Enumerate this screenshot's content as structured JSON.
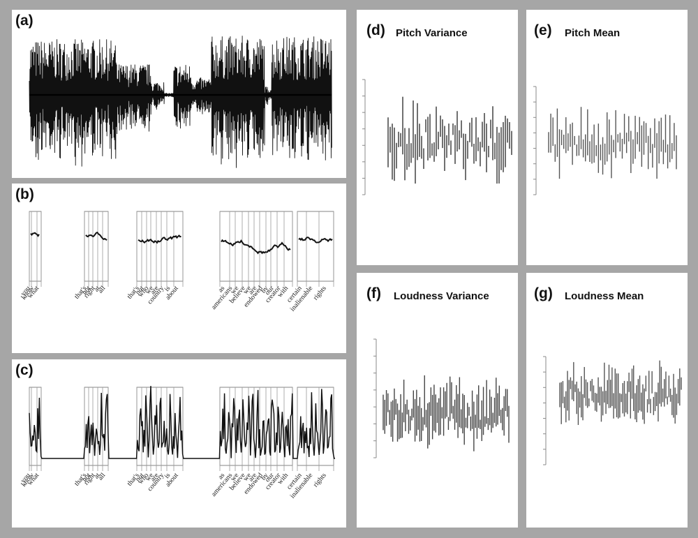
{
  "panels": {
    "a": {
      "tag": "(a)"
    },
    "b": {
      "tag": "(b)"
    },
    "c": {
      "tag": "(c)"
    },
    "d": {
      "tag": "(d)",
      "title": "Pitch Variance"
    },
    "e": {
      "tag": "(e)",
      "title": "Pitch Mean"
    },
    "f": {
      "tag": "(f)",
      "title": "Loudness Variance"
    },
    "g": {
      "tag": "(g)",
      "title": "Loudness Mean"
    }
  },
  "chart_data": [
    {
      "type": "line",
      "panel": "a",
      "title": "",
      "series": [
        {
          "values": []
        }
      ]
    },
    {
      "type": "line",
      "panel": "b",
      "words": [
        "you",
        "know",
        "what",
        "that's",
        "not",
        "right",
        "at",
        "all",
        "that's",
        "not",
        "who",
        "we",
        "are",
        "country",
        "is",
        "about",
        "as",
        "americans",
        "we",
        "believe",
        "we",
        "are",
        "endowed",
        "by",
        "our",
        "creator",
        "with",
        "certain",
        "inalienable",
        "rights"
      ]
    },
    {
      "type": "line",
      "panel": "c",
      "words": [
        "you",
        "know",
        "what",
        "that's",
        "not",
        "right",
        "at",
        "all",
        "that's",
        "not",
        "who",
        "we",
        "are",
        "country",
        "is",
        "about",
        "as",
        "americans",
        "we",
        "believe",
        "we",
        "are",
        "endowed",
        "by",
        "our",
        "creator",
        "with",
        "certain",
        "inalienable",
        "rights"
      ]
    },
    {
      "type": "bar",
      "panel": "d",
      "title": "Pitch Variance",
      "series": [
        {
          "values": []
        }
      ]
    },
    {
      "type": "bar",
      "panel": "e",
      "title": "Pitch Mean",
      "series": [
        {
          "values": []
        }
      ]
    },
    {
      "type": "line",
      "panel": "f",
      "title": "Loudness Variance",
      "series": [
        {
          "values": []
        }
      ]
    },
    {
      "type": "line",
      "panel": "g",
      "title": "Loudness Mean",
      "series": [
        {
          "values": []
        }
      ]
    }
  ]
}
